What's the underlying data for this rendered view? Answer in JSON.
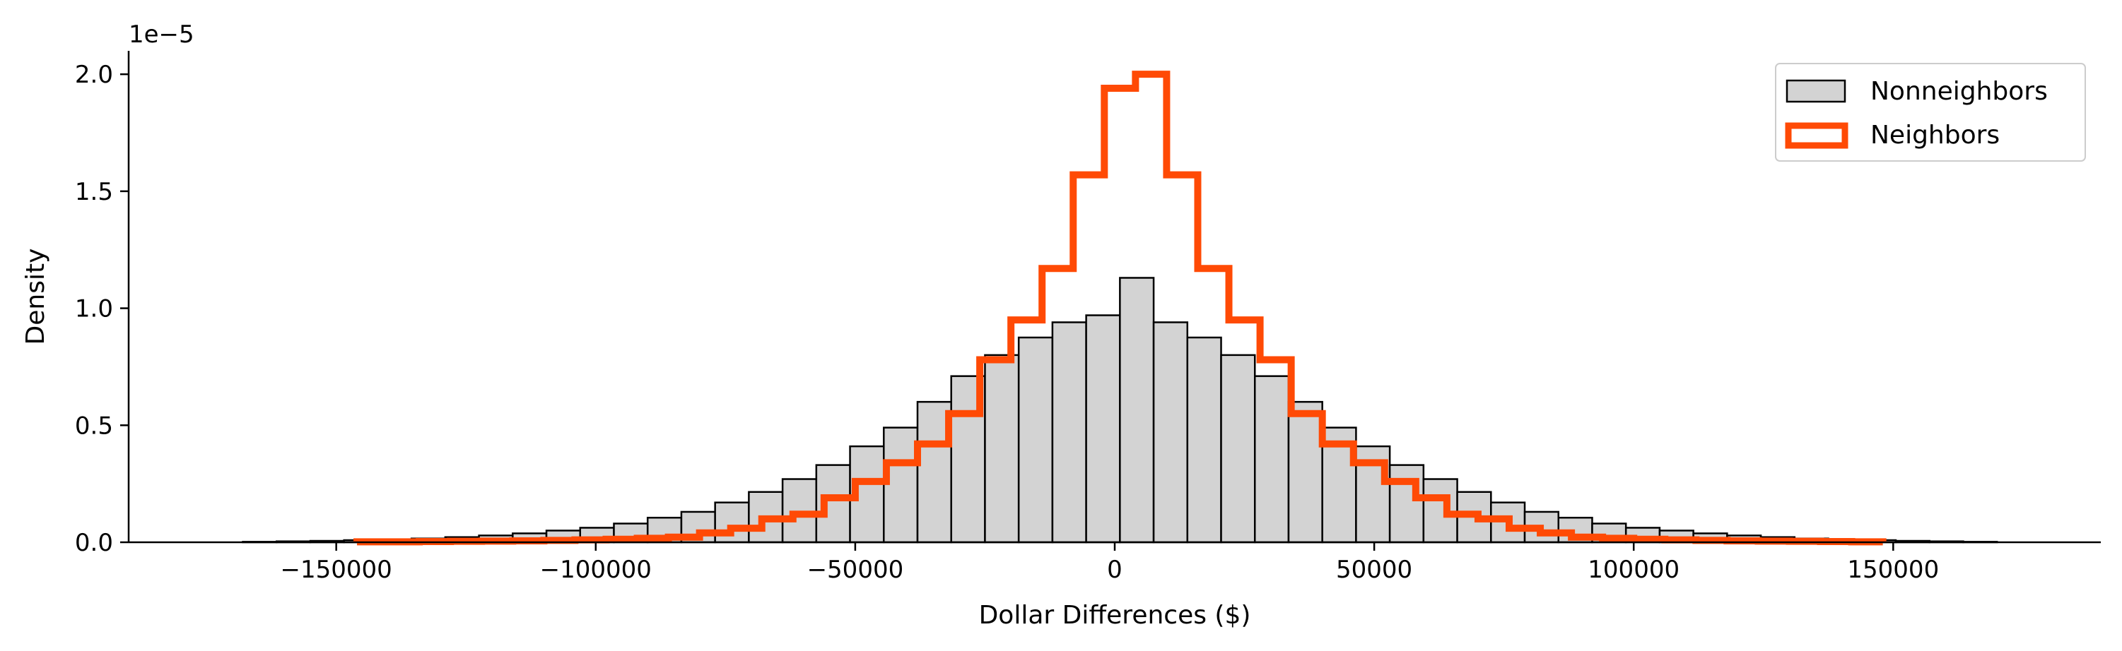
{
  "chart_data": {
    "type": "histogram",
    "title": "",
    "xlabel": "Dollar Differences ($)",
    "ylabel": "Density",
    "y_offset_text": "1e−5",
    "y_scale": 1e-05,
    "xlim": [
      -190000,
      190000
    ],
    "ylim": [
      0,
      2.1
    ],
    "x_ticks": [
      -150000,
      -100000,
      -50000,
      0,
      50000,
      100000,
      150000
    ],
    "x_tick_labels": [
      "−150000",
      "−100000",
      "−50000",
      "0",
      "50000",
      "100000",
      "150000"
    ],
    "y_ticks": [
      0,
      0.5,
      1.0,
      1.5,
      2.0
    ],
    "y_tick_labels": [
      "0.0",
      "0.5",
      "1.0",
      "1.5",
      "2.0"
    ],
    "grid": false,
    "legend_position": "top-right",
    "series": [
      {
        "name": "Nonneighbors",
        "style": "bars",
        "fill": "#d3d3d3",
        "edge": "#000000",
        "bins": [
          -168000,
          -161500,
          -155000,
          -148500,
          -142000,
          -135500,
          -129000,
          -122500,
          -116000,
          -109500,
          -103000,
          -96500,
          -90000,
          -83500,
          -77000,
          -70500,
          -64000,
          -57500,
          -51000,
          -44500,
          -38000,
          -31500,
          -25000,
          -18500,
          -12000,
          -5500,
          1000,
          7500,
          14000,
          20500,
          27000,
          33500,
          40000,
          46500,
          53000,
          59500,
          66000,
          72500,
          79000,
          85500,
          92000,
          98500,
          105000,
          111500,
          118000,
          124500,
          131000,
          137500,
          144000,
          150500,
          157000,
          163500,
          170000
        ],
        "values": [
          0.002,
          0.004,
          0.006,
          0.009,
          0.012,
          0.016,
          0.022,
          0.029,
          0.038,
          0.05,
          0.062,
          0.08,
          0.105,
          0.13,
          0.17,
          0.215,
          0.27,
          0.33,
          0.41,
          0.49,
          0.6,
          0.71,
          0.8,
          0.875,
          0.94,
          0.97,
          1.13,
          0.94,
          0.875,
          0.8,
          0.71,
          0.6,
          0.49,
          0.41,
          0.33,
          0.27,
          0.215,
          0.17,
          0.13,
          0.105,
          0.08,
          0.062,
          0.05,
          0.038,
          0.029,
          0.022,
          0.016,
          0.012,
          0.009,
          0.006,
          0.004,
          0.002
        ]
      },
      {
        "name": "Neighbors",
        "style": "step",
        "color": "#ff4a05",
        "bins": [
          -146000,
          -140000,
          -134000,
          -128000,
          -122000,
          -116000,
          -110000,
          -104000,
          -98000,
          -92000,
          -86000,
          -80000,
          -74000,
          -68000,
          -62000,
          -56000,
          -50000,
          -44000,
          -38000,
          -32000,
          -26000,
          -20000,
          -14000,
          -8000,
          -2000,
          4000,
          10000,
          16000,
          22000,
          28000,
          34000,
          40000,
          46000,
          52000,
          58000,
          64000,
          70000,
          76000,
          82000,
          88000,
          94000,
          100000,
          106000,
          112000,
          118000,
          124000,
          130000,
          136000,
          142000,
          148000
        ],
        "values": [
          0.002,
          0.002,
          0.003,
          0.004,
          0.005,
          0.006,
          0.008,
          0.01,
          0.013,
          0.017,
          0.022,
          0.04,
          0.06,
          0.1,
          0.12,
          0.19,
          0.26,
          0.34,
          0.42,
          0.55,
          0.78,
          0.95,
          1.17,
          1.57,
          1.94,
          2.0,
          1.57,
          1.17,
          0.95,
          0.78,
          0.55,
          0.42,
          0.34,
          0.26,
          0.19,
          0.12,
          0.1,
          0.06,
          0.04,
          0.022,
          0.017,
          0.013,
          0.01,
          0.008,
          0.006,
          0.005,
          0.004,
          0.003,
          0.002
        ]
      }
    ]
  }
}
